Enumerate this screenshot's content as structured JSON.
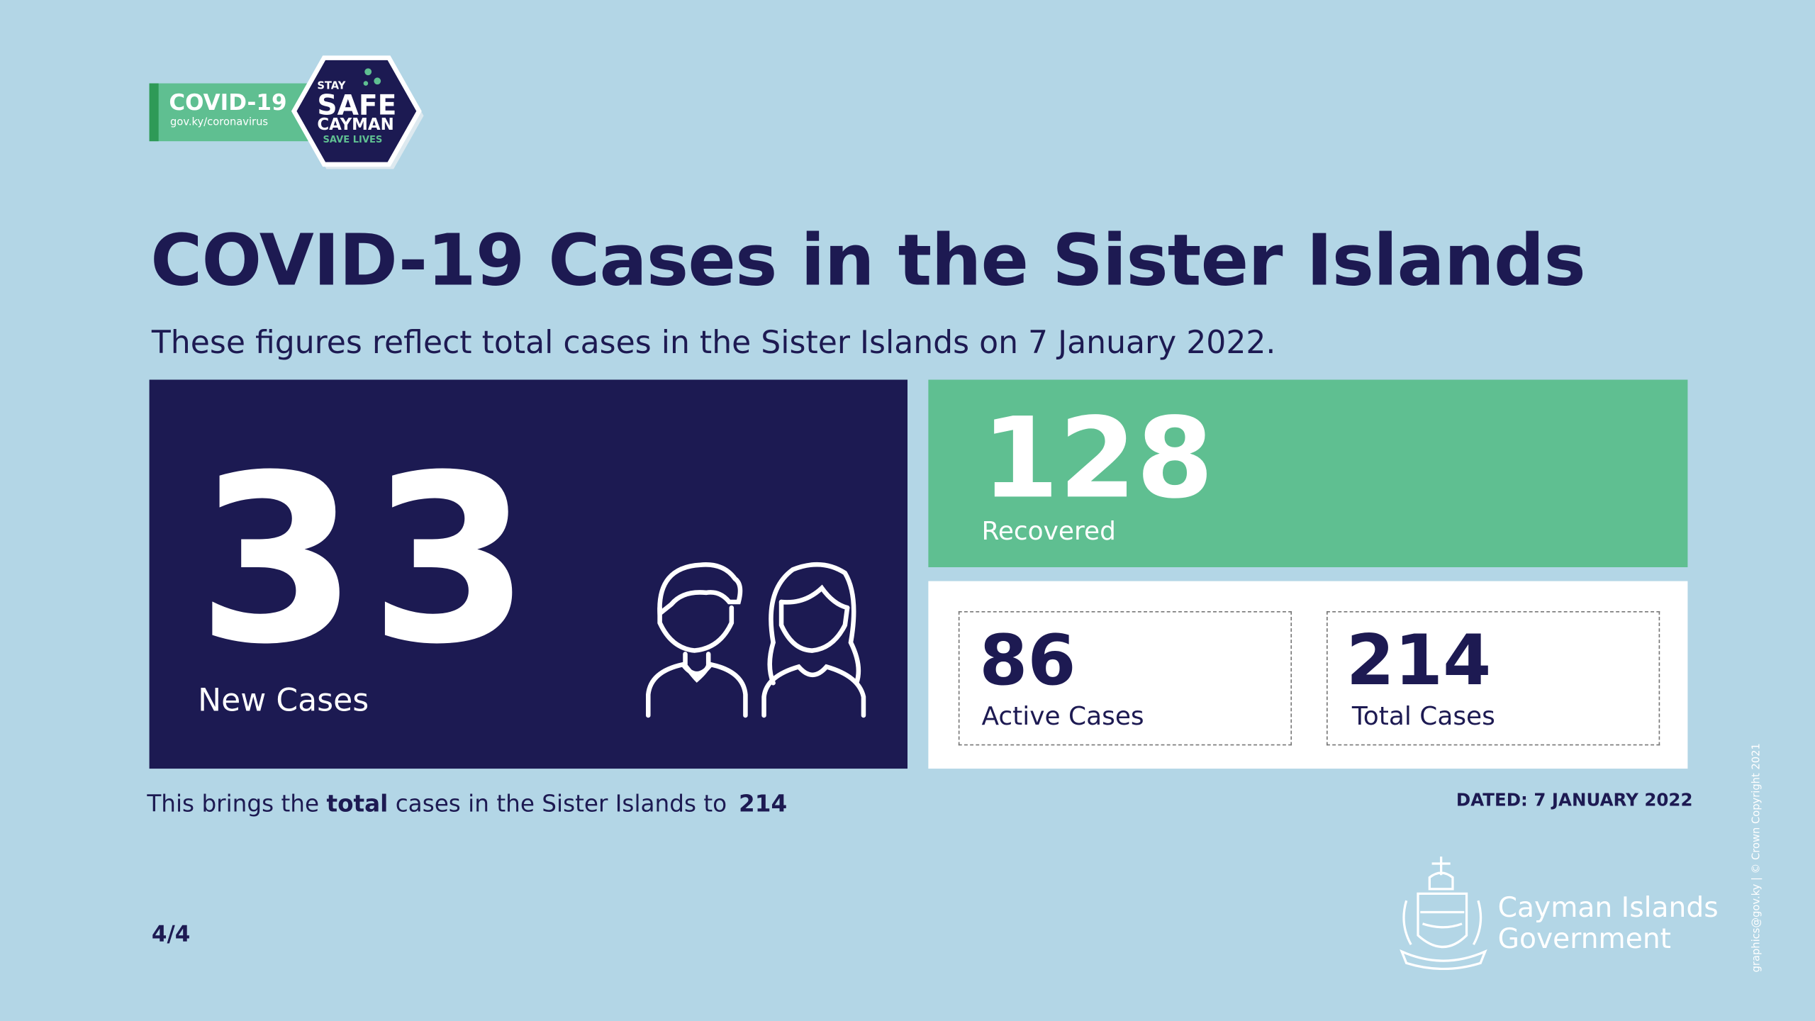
{
  "logo": {
    "badge": "COVID-19",
    "url": "gov.ky/coronavirus",
    "stay": "STAY",
    "safe": "SAFE",
    "cayman": "CAYMAN",
    "save_lives": "SAVE LIVES"
  },
  "header": {
    "title": "COVID-19 Cases in the Sister Islands",
    "subtitle": "These figures reflect total cases in the Sister Islands on 7 January 2022."
  },
  "new_cases": {
    "value": 33,
    "label": "New Cases"
  },
  "recovered": {
    "value": 128,
    "label": "Recovered"
  },
  "active": {
    "value": 86,
    "label": "Active Cases"
  },
  "total": {
    "value": 214,
    "label": "Total Cases"
  },
  "footer": {
    "part1": "This brings the",
    "bold": "total",
    "part2": "cases in the Sister Islands to",
    "total": 214,
    "dated": "DATED: 7 JANUARY 2022",
    "page": "4/4"
  },
  "government": {
    "line1": "Cayman Islands",
    "line2": "Government"
  },
  "credit": "graphics@gov.ky | © Crown Copyright 2021"
}
